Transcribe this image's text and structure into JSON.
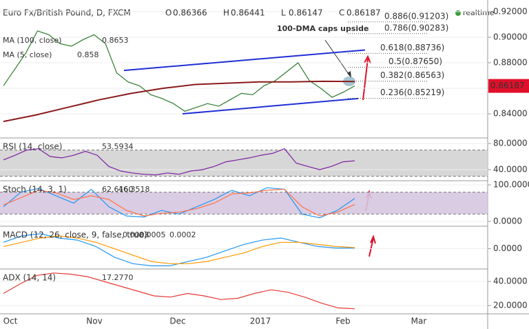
{
  "chart_data": [
    {
      "type": "line",
      "title": "Euro Fx/British Pound, D, FXCM",
      "ohlc_labels": [
        "O",
        "H",
        "L",
        "C"
      ],
      "ohlc": [
        0.86366,
        0.86441,
        0.86147,
        0.86187
      ],
      "status": "realtime",
      "legend": [
        {
          "name": "MA (100, close)",
          "value": 0.8653
        },
        {
          "name": "MA (5, close)",
          "value": 0.858
        }
      ],
      "annotation": "100-DMA caps upside",
      "last_price": 0.86187,
      "last_price_label": "0.86187",
      "x_labels": [
        "Oct",
        "Nov",
        "Dec",
        "2017",
        "Feb",
        "Mar"
      ],
      "ylim": [
        0.8211,
        0.9292
      ],
      "yticks": [
        {
          "value": 0.84,
          "label": "0.84000"
        },
        {
          "value": 0.86,
          "label": "0.86000"
        },
        {
          "value": 0.88,
          "label": "0.88000"
        },
        {
          "value": 0.9,
          "label": "0.90000"
        },
        {
          "value": 0.92,
          "label": "0.92000"
        }
      ],
      "series": [
        {
          "name": "Close",
          "color": "#2b7a2b",
          "values": [
            0.862,
            0.875,
            0.888,
            0.905,
            0.902,
            0.895,
            0.893,
            0.898,
            0.902,
            0.895,
            0.872,
            0.865,
            0.862,
            0.855,
            0.852,
            0.848,
            0.842,
            0.845,
            0.848,
            0.846,
            0.851,
            0.856,
            0.855,
            0.862,
            0.866,
            0.873,
            0.88,
            0.866,
            0.86,
            0.853,
            0.857,
            0.8619
          ]
        },
        {
          "name": "MA (100, close)",
          "color": "#8b1a1a",
          "values": [
            0.834,
            0.839,
            0.845,
            0.851,
            0.856,
            0.86,
            0.863,
            0.864,
            0.865,
            0.865,
            0.8655,
            0.8653
          ]
        }
      ],
      "channel": [
        {
          "color": "#1f2fd6",
          "values": [
            0.874,
            0.89
          ]
        },
        {
          "color": "#1f2fd6",
          "values": [
            0.84,
            0.852
          ]
        }
      ],
      "fib": [
        {
          "label": "0.886(0.91203)",
          "value": 0.91203
        },
        {
          "label": "0.786(0.90283)",
          "value": 0.90283
        },
        {
          "label": "0.618(0.88736)",
          "value": 0.88736
        },
        {
          "label": "0.5(0.87650)",
          "value": 0.8765
        },
        {
          "label": "0.382(0.86563)",
          "value": 0.86563
        },
        {
          "label": "0.236(0.85219)",
          "value": 0.85219
        }
      ]
    },
    {
      "type": "line",
      "title": "RSI (14, close)",
      "readout": [
        "53.5934"
      ],
      "ylim": [
        23.2,
        88.4
      ],
      "band": [
        30,
        70
      ],
      "yticks": [
        {
          "value": 40,
          "label": "40.0000"
        },
        {
          "value": 80,
          "label": "80.0000"
        }
      ],
      "series": [
        {
          "name": "RSI",
          "color": "#7b1fa2",
          "values": [
            55,
            62,
            70,
            72,
            60,
            58,
            62,
            68,
            62,
            45,
            38,
            35,
            33,
            32,
            35,
            33,
            38,
            40,
            45,
            52,
            55,
            58,
            62,
            65,
            72,
            50,
            45,
            40,
            45,
            52,
            53.5934
          ]
        }
      ]
    },
    {
      "type": "line",
      "title": "Stoch (14, 3, 1)",
      "readout": [
        "62.6160",
        "46.3518"
      ],
      "ylim": [
        -13.2,
        111.3
      ],
      "band": [
        20,
        80
      ],
      "yticks": [
        {
          "value": 0,
          "label": "0.0000"
        },
        {
          "value": 100,
          "label": "100.0000"
        }
      ],
      "series": [
        {
          "name": "%K",
          "color": "#2196f3",
          "values": [
            40,
            80,
            90,
            70,
            50,
            88,
            40,
            15,
            12,
            30,
            20,
            40,
            60,
            85,
            70,
            92,
            88,
            20,
            10,
            30,
            62.616
          ]
        },
        {
          "name": "%D",
          "color": "#ff7043",
          "values": [
            45,
            65,
            85,
            78,
            60,
            70,
            60,
            30,
            15,
            22,
            25,
            35,
            50,
            75,
            78,
            85,
            88,
            40,
            15,
            25,
            46.3518
          ]
        }
      ]
    },
    {
      "type": "line",
      "title": "MACD (12, 26, close, 9, false, true)",
      "readout": [
        "0.0003",
        "0.0005",
        "0.0002"
      ],
      "ylim": [
        -0.0095,
        0.0105
      ],
      "yticks": [
        {
          "value": 0,
          "label": "0.0000"
        }
      ],
      "series": [
        {
          "name": "MACD",
          "color": "#2196f3",
          "values": [
            0.003,
            0.006,
            0.007,
            0.005,
            0.004,
            0.001,
            -0.004,
            -0.007,
            -0.008,
            -0.008,
            -0.006,
            -0.004,
            -0.001,
            0.002,
            0.004,
            0.005,
            0.003,
            0.001,
            0.0003,
            0.0003
          ]
        },
        {
          "name": "Signal",
          "color": "#ff9800",
          "values": [
            0.001,
            0.003,
            0.005,
            0.006,
            0.005,
            0.003,
            0,
            -0.003,
            -0.006,
            -0.007,
            -0.007,
            -0.006,
            -0.004,
            -0.002,
            0.001,
            0.003,
            0.003,
            0.002,
            0.001,
            0.0005
          ]
        }
      ]
    },
    {
      "type": "line",
      "title": "ADX (14, 14)",
      "readout": [
        "17.2770"
      ],
      "ylim": [
        13.1,
        50.3
      ],
      "yticks": [
        {
          "value": 20,
          "label": "20.0000"
        },
        {
          "value": 40,
          "label": "40.0000"
        }
      ],
      "series": [
        {
          "name": "ADX",
          "color": "#e53935",
          "values": [
            30,
            38,
            45,
            47,
            46,
            44,
            40,
            36,
            32,
            28,
            27,
            30,
            28,
            25,
            26,
            30,
            33,
            31,
            27,
            22,
            18,
            17.277
          ]
        }
      ]
    }
  ]
}
